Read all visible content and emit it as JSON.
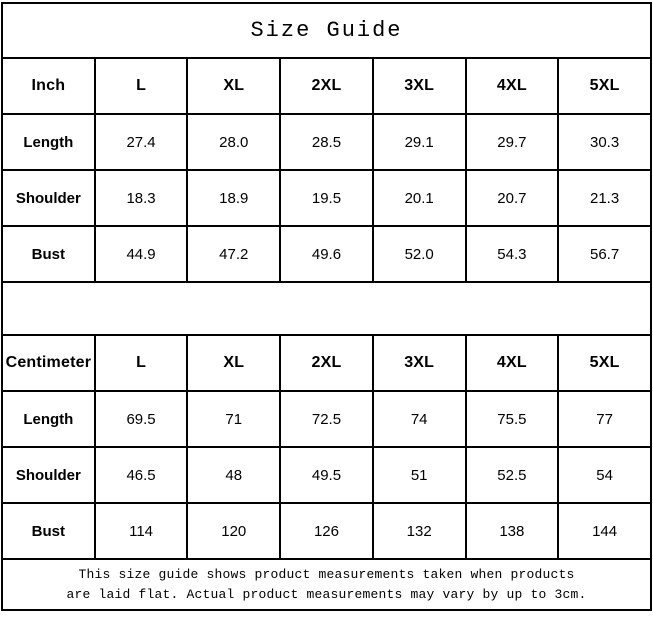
{
  "title": "Size Guide",
  "colors": {
    "background": "#ffffff",
    "border": "#000000",
    "text": "#000000"
  },
  "chart_data": {
    "type": "table",
    "title": "Size Guide",
    "tables": [
      {
        "unit": "Inch",
        "columns": [
          "Inch",
          "L",
          "XL",
          "2XL",
          "3XL",
          "4XL",
          "5XL"
        ],
        "rows": [
          {
            "label": "Length",
            "values": [
              "27.4",
              "28.0",
              "28.5",
              "29.1",
              "29.7",
              "30.3"
            ]
          },
          {
            "label": "Shoulder",
            "values": [
              "18.3",
              "18.9",
              "19.5",
              "20.1",
              "20.7",
              "21.3"
            ]
          },
          {
            "label": "Bust",
            "values": [
              "44.9",
              "47.2",
              "49.6",
              "52.0",
              "54.3",
              "56.7"
            ]
          }
        ]
      },
      {
        "unit": "Centimeter",
        "columns": [
          "Centimeter",
          "L",
          "XL",
          "2XL",
          "3XL",
          "4XL",
          "5XL"
        ],
        "rows": [
          {
            "label": "Length",
            "values": [
              "69.5",
              "71",
              "72.5",
              "74",
              "75.5",
              "77"
            ]
          },
          {
            "label": "Shoulder",
            "values": [
              "46.5",
              "48",
              "49.5",
              "51",
              "52.5",
              "54"
            ]
          },
          {
            "label": "Bust",
            "values": [
              "114",
              "120",
              "126",
              "132",
              "138",
              "144"
            ]
          }
        ]
      }
    ],
    "footnote": [
      "This size guide shows product measurements taken when products",
      "are laid flat. Actual product measurements may vary by up to 3cm."
    ]
  }
}
